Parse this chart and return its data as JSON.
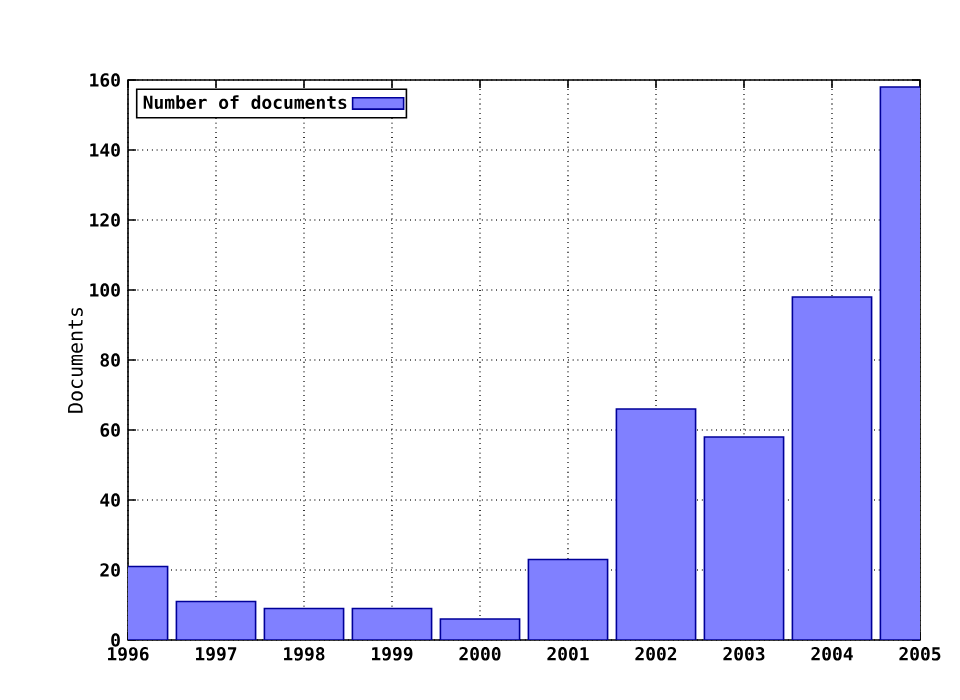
{
  "chart_data": {
    "type": "bar",
    "ylabel": "Documents",
    "x": [
      1996,
      1997,
      1998,
      1999,
      2000,
      2001,
      2002,
      2003,
      2004,
      2005
    ],
    "series": [
      {
        "name": "Number of documents",
        "color": "#8080ff",
        "values": [
          21,
          11,
          9,
          9,
          6,
          23,
          66,
          58,
          98,
          158
        ]
      }
    ],
    "xlim": [
      1996,
      2005
    ],
    "xticks": [
      1996,
      1997,
      1998,
      1999,
      2000,
      2001,
      2002,
      2003,
      2004,
      2005
    ],
    "ylim": [
      0,
      160
    ],
    "yticks": [
      0,
      20,
      40,
      60,
      80,
      100,
      120,
      140,
      160
    ],
    "grid": true,
    "legend": "top left"
  }
}
